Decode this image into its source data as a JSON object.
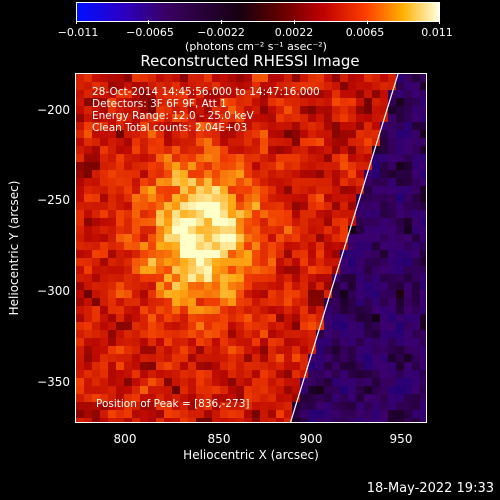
{
  "colorbar": {
    "ticks": [
      "−0.011",
      "−0.0065",
      "−0.0022",
      "0.0022",
      "0.0065",
      "0.011"
    ],
    "units": "(photons cm⁻² s⁻¹ asec⁻²)"
  },
  "plot": {
    "title": "Reconstructed RHESSI Image",
    "annotations": [
      "28-Oct-2014 14:45:56.000 to 14:47:16.000",
      "Detectors: 3F 6F 9F, Att 1",
      "Energy Range: 12.0 – 25.0 keV",
      "Clean     Total counts: 2.04E+03"
    ],
    "peak_text": "Position of Peak = [836,-273]",
    "x_ticks": [
      "800",
      "850",
      "900",
      "950"
    ],
    "y_ticks": [
      "−200",
      "−250",
      "−300",
      "−350"
    ],
    "xlabel": "Heliocentric X (arcsec)",
    "ylabel": "Heliocentric Y (arcsec)"
  },
  "footer": "18-May-2022 19:33"
}
